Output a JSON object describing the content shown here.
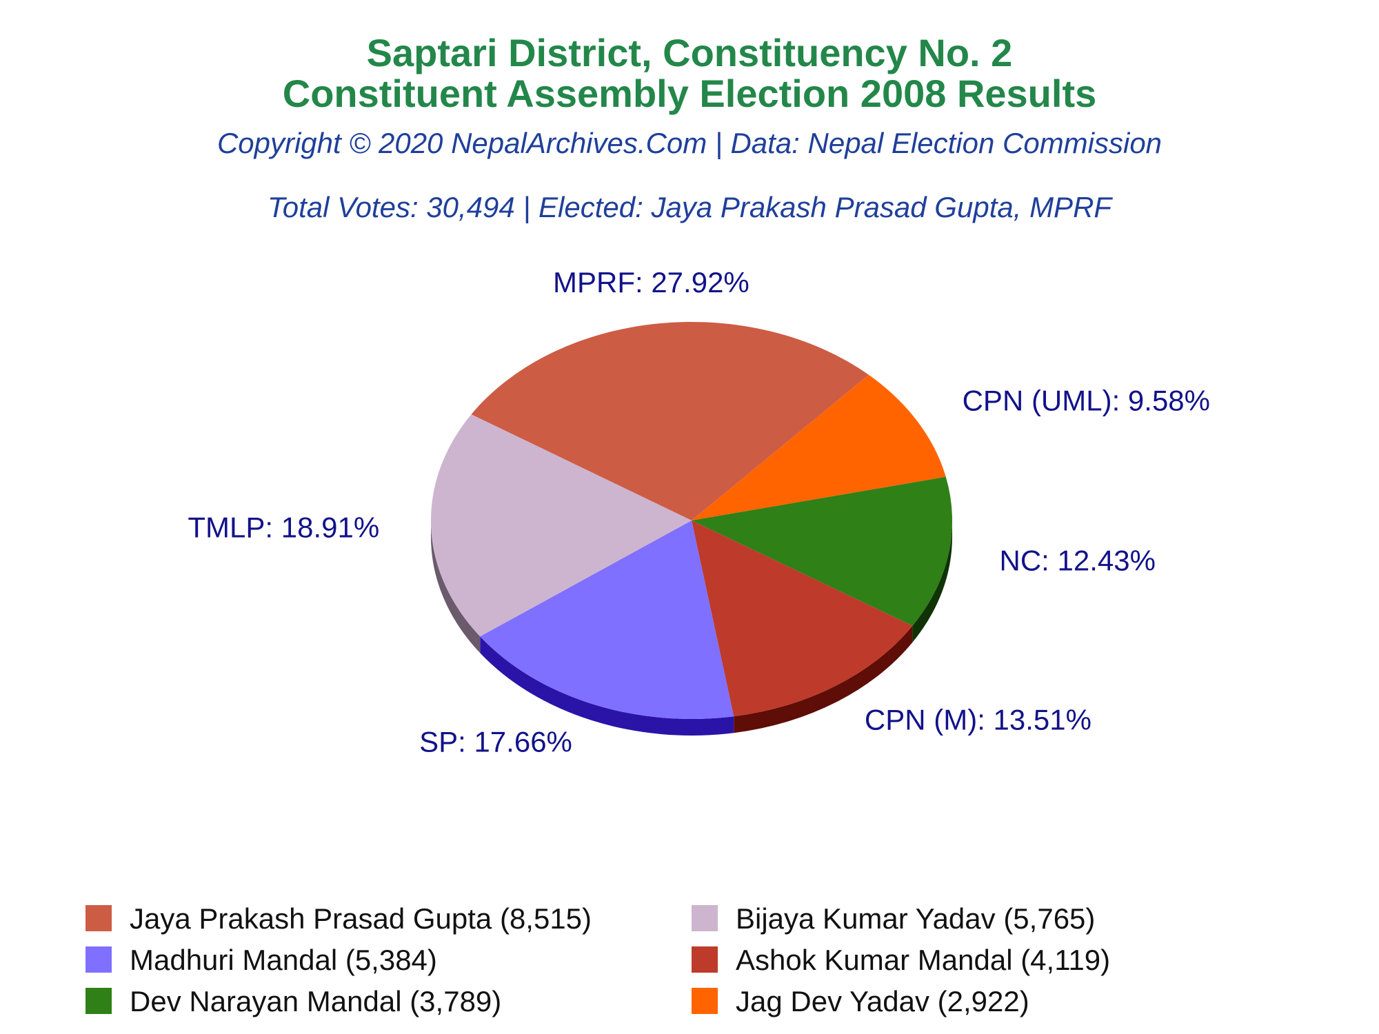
{
  "title_lines": [
    "Saptari District, Constituency No. 2",
    "Constituent Assembly Election 2008 Results"
  ],
  "subtitle": "Copyright © 2020 NepalArchives.Com | Data: Nepal Election Commission",
  "summary": "Total Votes: 30,494 | Elected: Jaya Prakash Prasad Gupta, MPRF",
  "colors": {
    "title": "#23874a",
    "subtitle": "#1f3f9a",
    "slice_label": "#12128a"
  },
  "chart_data": {
    "type": "pie",
    "total_votes": 30494,
    "slices": [
      {
        "party": "MPRF",
        "candidate": "Jaya Prakash Prasad Gupta",
        "votes": 8515,
        "percent": 27.92,
        "label": "MPRF: 27.92%",
        "legend": "Jaya Prakash Prasad Gupta (8,515)",
        "color": "#cd5c45",
        "side": "#7a2f22"
      },
      {
        "party": "CPN (UML)",
        "candidate": "Jag Dev Yadav",
        "votes": 2922,
        "percent": 9.58,
        "label": "CPN (UML): 9.58%",
        "legend": "Jag Dev Yadav (2,922)",
        "color": "#ff6400",
        "side": "#8a3600"
      },
      {
        "party": "NC",
        "candidate": "Dev Narayan Mandal",
        "votes": 3789,
        "percent": 12.43,
        "label": "NC: 12.43%",
        "legend": "Dev Narayan Mandal (3,789)",
        "color": "#2f8017",
        "side": "#0f3306"
      },
      {
        "party": "CPN (M)",
        "candidate": "Ashok Kumar Mandal",
        "votes": 4119,
        "percent": 13.51,
        "label": "CPN (M): 13.51%",
        "legend": "Ashok Kumar Mandal (4,119)",
        "color": "#be3a2a",
        "side": "#5e0d07"
      },
      {
        "party": "SP",
        "candidate": "Madhuri Mandal",
        "votes": 5384,
        "percent": 17.66,
        "label": "SP: 17.66%",
        "legend": "Madhuri Mandal (5,384)",
        "color": "#8070ff",
        "side": "#2a14a8"
      },
      {
        "party": "TMLP",
        "candidate": "Bijaya Kumar Yadav",
        "votes": 5765,
        "percent": 18.91,
        "label": "TMLP: 18.91%",
        "legend": "Bijaya Kumar Yadav (5,765)",
        "color": "#cdb5cf",
        "side": "#6b5a6c"
      }
    ],
    "legend_order": [
      0,
      5,
      4,
      3,
      2,
      1
    ],
    "legend_placement": "bottom"
  }
}
